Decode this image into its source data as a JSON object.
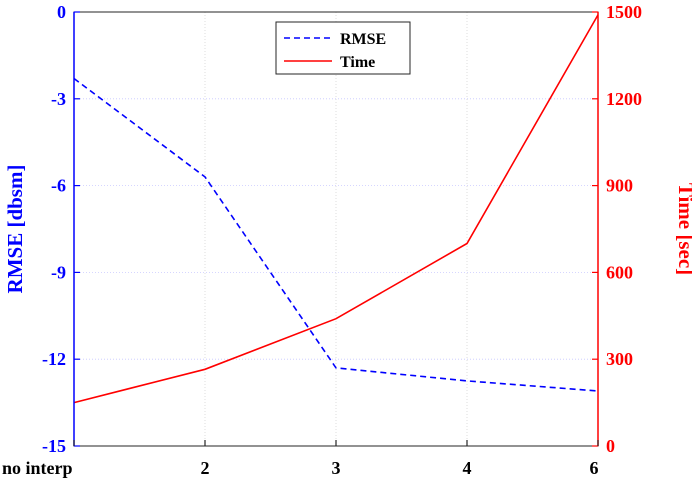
{
  "chart_data": {
    "type": "line",
    "categories": [
      "no interp",
      "2",
      "3",
      "4",
      "6"
    ],
    "series": [
      {
        "name": "RMSE",
        "axis": "left",
        "style": "dashed",
        "color": "#0000ff",
        "values": [
          -2.3,
          -5.7,
          -12.3,
          -12.75,
          -13.1
        ]
      },
      {
        "name": "Time",
        "axis": "right",
        "style": "solid",
        "color": "#ff0000",
        "values": [
          150,
          265,
          440,
          700,
          1490
        ]
      }
    ],
    "y_left": {
      "label": "RMSE [dbsm]",
      "ylim": [
        -15,
        0
      ],
      "ticks": [
        "0",
        "-3",
        "-6",
        "-9",
        "-12",
        "-15"
      ],
      "color": "#0000ff"
    },
    "y_right": {
      "label": "Time [sec]",
      "ylim": [
        0,
        1500
      ],
      "ticks": [
        "1500",
        "1200",
        "900",
        "600",
        "300",
        "0"
      ],
      "color": "#ff0000"
    },
    "grid": true,
    "legend_position": "top-center"
  }
}
